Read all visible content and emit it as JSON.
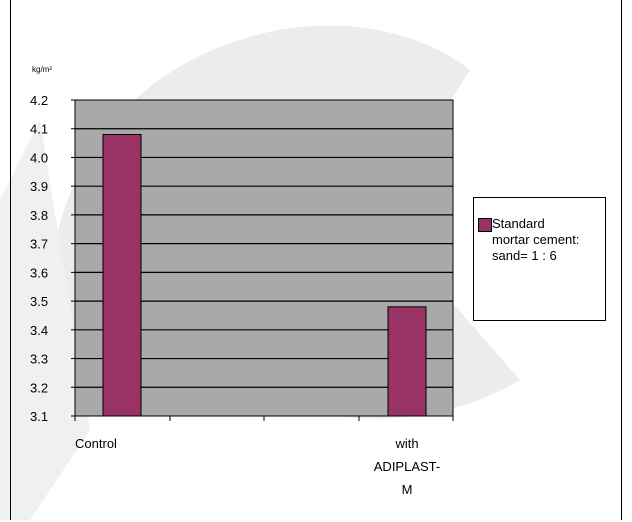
{
  "chart_data": {
    "type": "bar",
    "title": "",
    "unit_label": "kg/m²",
    "xlabel": "",
    "ylabel": "",
    "categories": [
      "Control",
      "with ADIPLAST-M"
    ],
    "categories_display": [
      [
        "Control"
      ],
      [
        "with",
        "ADIPLAST-",
        "M"
      ]
    ],
    "series": [
      {
        "name": "Standard mortar cement: sand= 1 : 6",
        "values": [
          4.08,
          3.48
        ]
      }
    ],
    "ylim": [
      3.1,
      4.2
    ],
    "yticks": [
      "4.2",
      "4.1",
      "4.0",
      "3.9",
      "3.8",
      "3.7",
      "3.6",
      "3.5",
      "3.4",
      "3.3",
      "3.2",
      "3.1"
    ],
    "ytick_step": 0.1,
    "grid": true,
    "legend_position": "right",
    "colors": {
      "bar": "#993366",
      "plot_background": "#a9a9a9",
      "gridline": "#000000",
      "watermark": "#e9e9e9"
    }
  },
  "legend": {
    "label": "Standard\nmortar cement:\nsand= 1 : 6"
  }
}
